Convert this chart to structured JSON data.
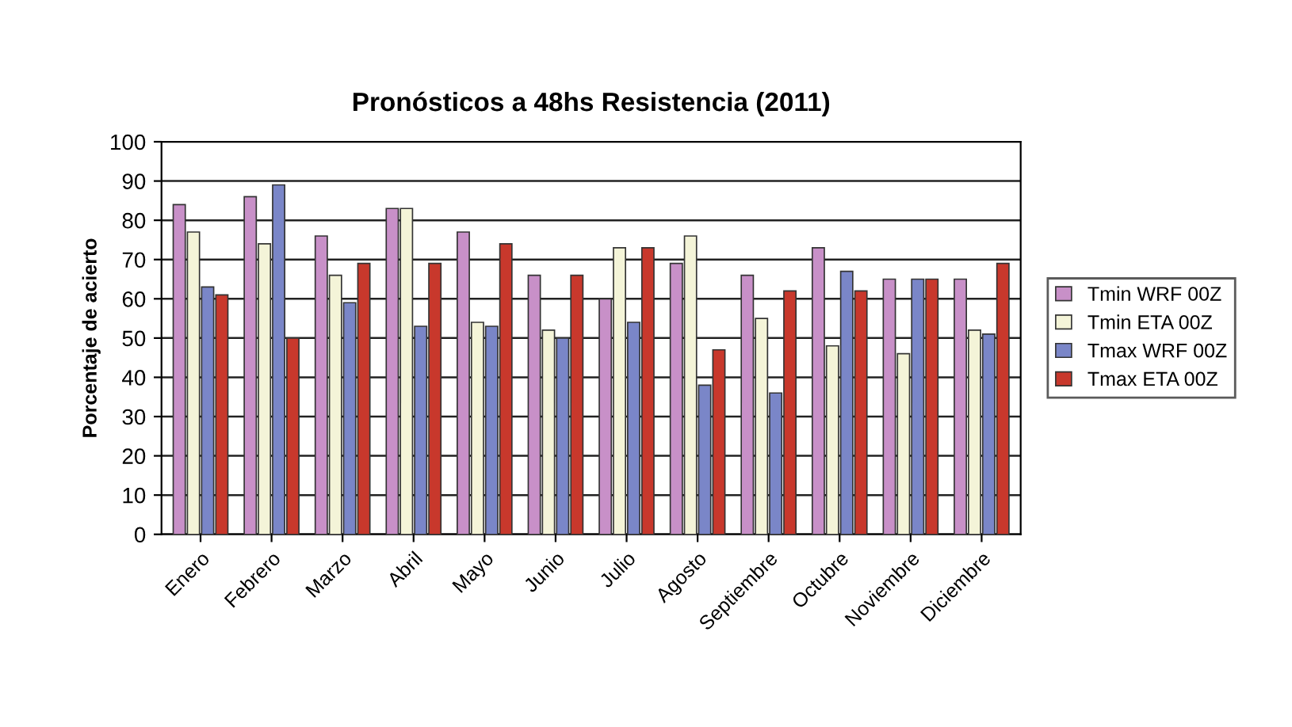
{
  "chart_data": {
    "type": "bar",
    "title": "Pronósticos a 48hs Resistencia (2011)",
    "ylabel": "Porcentaje de acierto",
    "categories": [
      "Enero",
      "Febrero",
      "Marzo",
      "Abril",
      "Mayo",
      "Junio",
      "Julio",
      "Agosto",
      "Septiembre",
      "Octubre",
      "Noviembre",
      "Diciembre"
    ],
    "series": [
      {
        "name": "Tmin WRF 00Z",
        "color": "#c890c8",
        "values": [
          84,
          86,
          76,
          83,
          77,
          66,
          60,
          69,
          66,
          73,
          65,
          65
        ]
      },
      {
        "name": "Tmin ETA 00Z",
        "color": "#f4f4d8",
        "values": [
          77,
          74,
          66,
          83,
          54,
          52,
          73,
          76,
          55,
          48,
          46,
          52
        ]
      },
      {
        "name": "Tmax WRF 00Z",
        "color": "#7a86c8",
        "values": [
          63,
          89,
          59,
          53,
          53,
          50,
          54,
          38,
          36,
          67,
          65,
          51
        ]
      },
      {
        "name": "Tmax ETA 00Z",
        "color": "#c8382c",
        "values": [
          61,
          50,
          69,
          69,
          74,
          66,
          73,
          47,
          62,
          62,
          65,
          69
        ]
      }
    ],
    "ylim": [
      0,
      100
    ],
    "yticks": [
      0,
      10,
      20,
      30,
      40,
      50,
      60,
      70,
      80,
      90,
      100
    ],
    "grid": "y",
    "legend": "right"
  }
}
